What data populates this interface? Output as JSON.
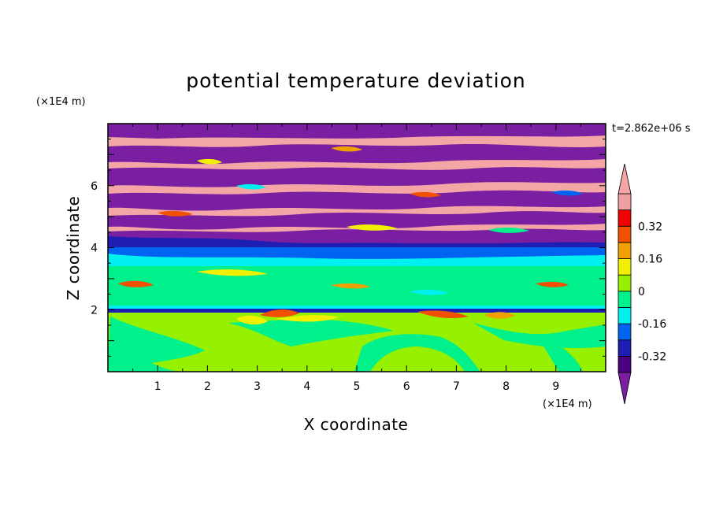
{
  "chart_data": {
    "type": "heatmap",
    "title": "potential temperature deviation",
    "xlabel": "X coordinate",
    "ylabel": "Z coordinate",
    "x_unit": "(×1E4 m)",
    "y_unit": "(×1E4 m)",
    "time_label": "t=2.862e+06 s",
    "xlim": [
      0,
      10
    ],
    "ylim": [
      0,
      8
    ],
    "x_ticks": [
      "1",
      "2",
      "3",
      "4",
      "5",
      "6",
      "7",
      "8",
      "9"
    ],
    "y_ticks": [
      "2",
      "4",
      "6"
    ],
    "colorbar": {
      "labels": [
        "0.32",
        "0.16",
        "0",
        "-0.16",
        "-0.32"
      ],
      "levels": [
        -0.4,
        -0.32,
        -0.24,
        -0.16,
        -0.08,
        0,
        0.08,
        0.16,
        0.24,
        0.32,
        0.4
      ],
      "colors": [
        "#4b0082",
        "#1e1eb4",
        "#0064f0",
        "#00f0f0",
        "#00f08c",
        "#96f000",
        "#f0f000",
        "#f0a000",
        "#f05000",
        "#f00000",
        "#f0a0a0"
      ],
      "under_color": "#7a1fa2",
      "over_color": "#f4a6a6"
    },
    "layers": [
      {
        "z_range": [
          0,
          1.9
        ],
        "field": "near-zero (0 to 0.08 dominant, -0.08 to 0 patches)"
      },
      {
        "z_range": [
          1.9,
          2.1
        ],
        "field": "thin negative layer with positive extremes up to 0.4"
      },
      {
        "z_range": [
          2.1,
          3.4
        ],
        "field": "near-zero (-0.08 to 0.08)"
      },
      {
        "z_range": [
          3.4,
          4.0
        ],
        "field": "negative (-0.16 to -0.4)"
      },
      {
        "z_range": [
          4.0,
          8.0
        ],
        "field": "alternating bands above 0.4 and below -0.4"
      }
    ]
  }
}
